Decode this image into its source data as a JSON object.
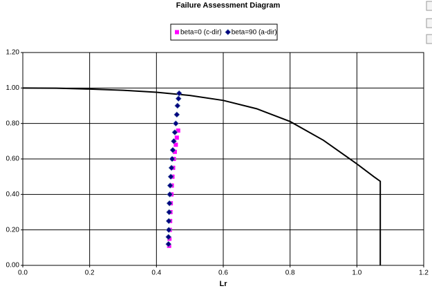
{
  "chart_data": {
    "type": "scatter",
    "title": "Failure Assessment Diagram",
    "x_label": "Lr",
    "xlim": [
      0,
      1.2
    ],
    "ylim": [
      0,
      1.2
    ],
    "xticks": [
      {
        "value": 0,
        "label": "0.0"
      },
      {
        "value": 0.2,
        "label": "0.2"
      },
      {
        "value": 0.4,
        "label": "0.4"
      },
      {
        "value": 0.6,
        "label": "0.6"
      },
      {
        "value": 0.8,
        "label": "0.8"
      },
      {
        "value": 1.0,
        "label": "1.0"
      },
      {
        "value": 1.2,
        "label": "1.2"
      }
    ],
    "yticks": [
      {
        "value": 0,
        "label": "0.00"
      },
      {
        "value": 0.2,
        "label": "0.20"
      },
      {
        "value": 0.4,
        "label": "0.40"
      },
      {
        "value": 0.6,
        "label": "0.60"
      },
      {
        "value": 0.8,
        "label": "0.80"
      },
      {
        "value": 1.0,
        "label": "1.00"
      },
      {
        "value": 1.2,
        "label": "1.20"
      }
    ],
    "grid": true,
    "fad_curve": {
      "color": "#000000",
      "x": [
        0,
        0.1,
        0.2,
        0.3,
        0.4,
        0.5,
        0.6,
        0.7,
        0.8,
        0.9,
        1.0,
        1.05,
        1.07,
        1.07
      ],
      "values": [
        1.0,
        0.999,
        0.994,
        0.987,
        0.976,
        0.958,
        0.93,
        0.883,
        0.811,
        0.705,
        0.572,
        0.501,
        0.474,
        0
      ]
    },
    "series": [
      {
        "name": "beta=0 (c-dir)",
        "color": "#ff00ff",
        "marker": "square",
        "x": [
          0.438,
          0.439,
          0.44,
          0.441,
          0.442,
          0.443,
          0.445,
          0.446,
          0.448,
          0.45,
          0.452,
          0.455,
          0.458,
          0.461,
          0.465
        ],
        "values": [
          0.11,
          0.15,
          0.2,
          0.25,
          0.3,
          0.35,
          0.4,
          0.45,
          0.5,
          0.55,
          0.6,
          0.64,
          0.68,
          0.72,
          0.76
        ]
      },
      {
        "name": "beta=90 (a-dir)",
        "color": "#000080",
        "marker": "diamond",
        "x": [
          0.436,
          0.436,
          0.437,
          0.437,
          0.438,
          0.439,
          0.44,
          0.441,
          0.443,
          0.445,
          0.447,
          0.449,
          0.452,
          0.455,
          0.458,
          0.461,
          0.463,
          0.466,
          0.468
        ],
        "values": [
          0.12,
          0.16,
          0.2,
          0.25,
          0.3,
          0.35,
          0.4,
          0.45,
          0.5,
          0.55,
          0.6,
          0.65,
          0.7,
          0.75,
          0.8,
          0.85,
          0.9,
          0.94,
          0.97
        ]
      }
    ]
  }
}
